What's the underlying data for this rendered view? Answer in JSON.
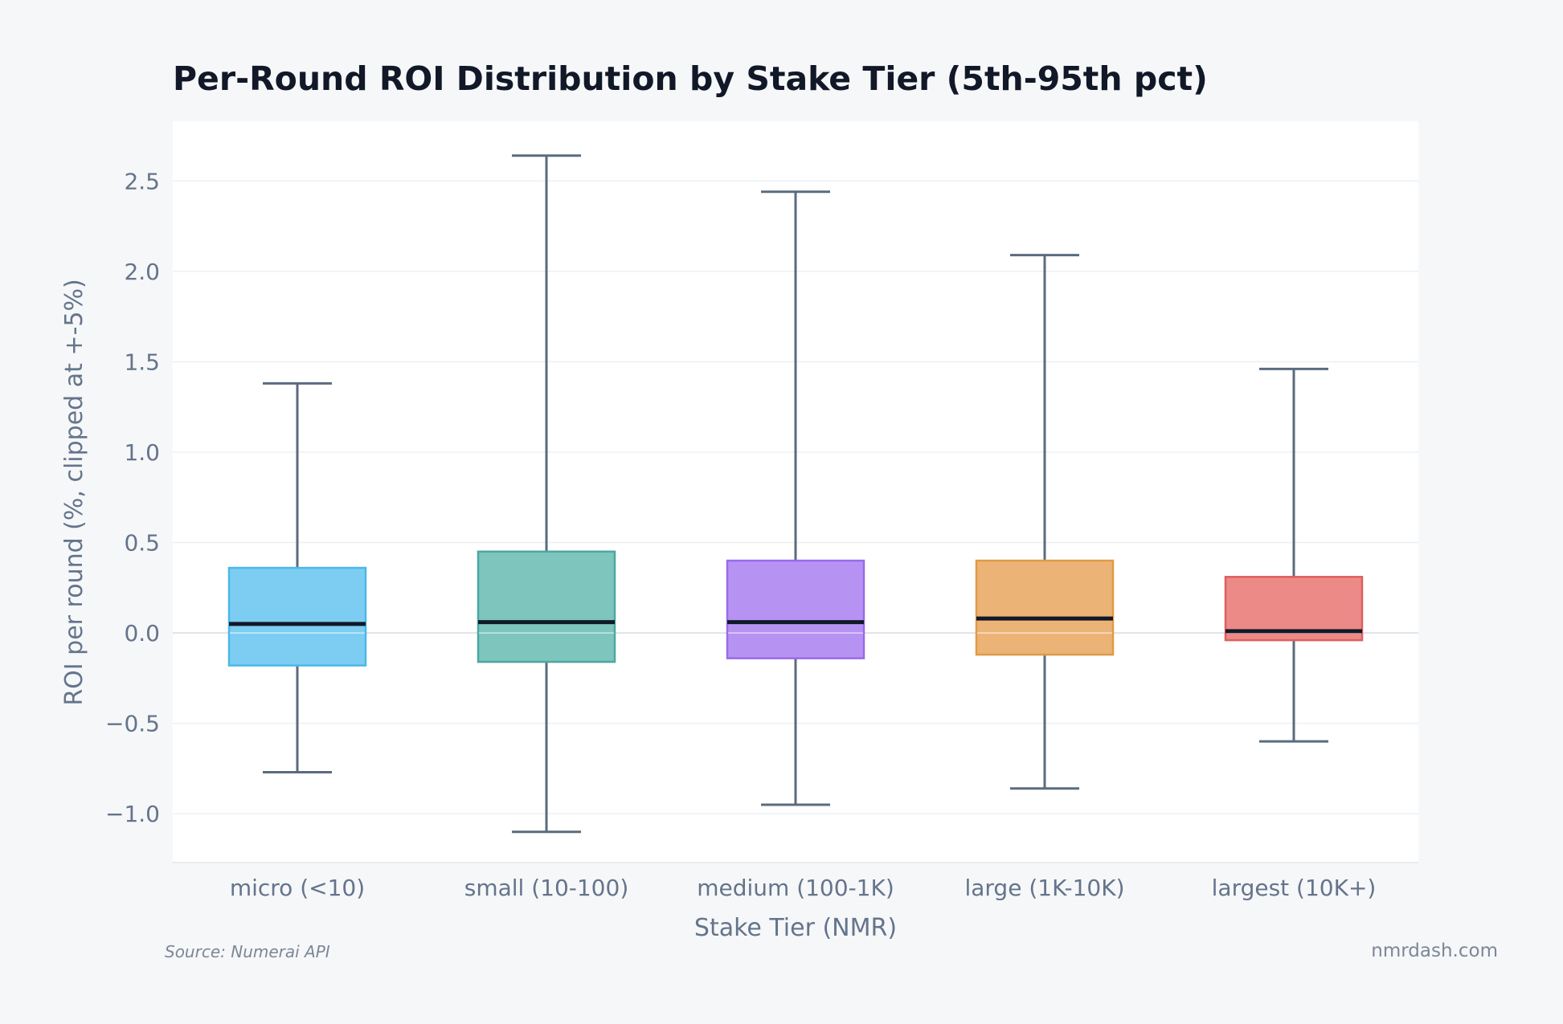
{
  "chart_data": {
    "type": "box",
    "title": "Per-Round ROI Distribution by Stake Tier (5th-95th pct)",
    "xlabel": "Stake Tier (NMR)",
    "ylabel": "ROI per round (%, clipped at +-5%)",
    "ylim": [
      -1.27,
      2.83
    ],
    "yticks": [
      -1.0,
      -0.5,
      0.0,
      0.5,
      1.0,
      1.5,
      2.0,
      2.5
    ],
    "ytick_labels": [
      "−1.0",
      "−0.5",
      "0.0",
      "0.5",
      "1.0",
      "1.5",
      "2.0",
      "2.5"
    ],
    "grid": true,
    "categories": [
      "micro (<10)",
      "small (10-100)",
      "medium (100-1K)",
      "large (1K-10K)",
      "largest (10K+)"
    ],
    "boxes": [
      {
        "whisker_low": -0.77,
        "q1": -0.18,
        "median": 0.05,
        "q3": 0.36,
        "whisker_high": 1.38,
        "color": "#7dcdf3",
        "edge": "#4bb8e8"
      },
      {
        "whisker_low": -1.1,
        "q1": -0.16,
        "median": 0.06,
        "q3": 0.45,
        "whisker_high": 2.64,
        "color": "#7ec5bd",
        "edge": "#4ba89f"
      },
      {
        "whisker_low": -0.95,
        "q1": -0.14,
        "median": 0.06,
        "q3": 0.4,
        "whisker_high": 2.44,
        "color": "#b693f3",
        "edge": "#9a6ae8"
      },
      {
        "whisker_low": -0.86,
        "q1": -0.12,
        "median": 0.08,
        "q3": 0.4,
        "whisker_high": 2.09,
        "color": "#ebb476",
        "edge": "#e09a48"
      },
      {
        "whisker_low": -0.6,
        "q1": -0.04,
        "median": 0.01,
        "q3": 0.31,
        "whisker_high": 1.46,
        "color": "#ec8a88",
        "edge": "#dd5f5d"
      }
    ]
  },
  "footer": {
    "source": "Source: Numerai API",
    "site": "nmrdash.com"
  },
  "colors": {
    "background": "#f6f7f9",
    "plot_background": "#ffffff",
    "grid": "#edf0f3",
    "whisker": "#5b6b7e",
    "median": "#111827"
  }
}
